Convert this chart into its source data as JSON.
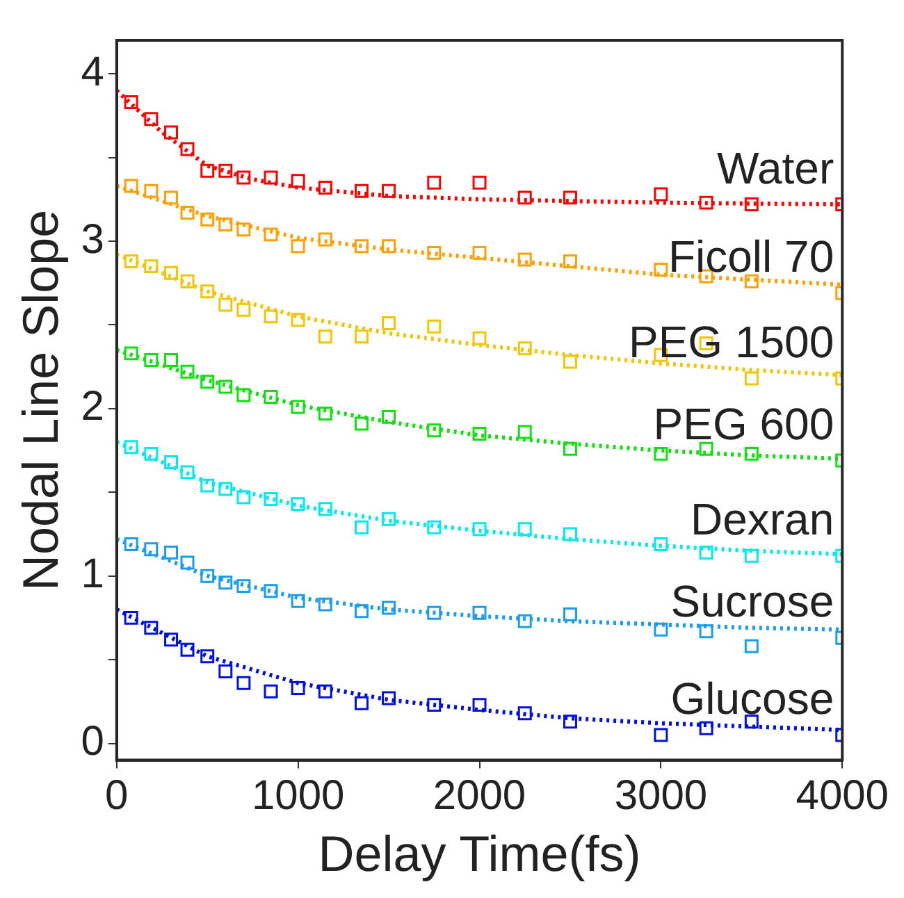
{
  "chart_data": {
    "type": "scatter",
    "xlabel": "Delay Time(fs)",
    "ylabel": "Nodal Line Slope",
    "x": [
      80,
      190,
      300,
      390,
      500,
      600,
      700,
      850,
      1000,
      1150,
      1350,
      1500,
      1750,
      2000,
      2250,
      2500,
      3000,
      3250,
      3500,
      4000
    ],
    "xlim": [
      0,
      4000
    ],
    "xticks": [
      0,
      1000,
      2000,
      3000,
      4000
    ],
    "ylim": [
      -0.1,
      4.2
    ],
    "yticks": [
      0,
      {
        "value": 0.5,
        "label": null
      },
      1,
      {
        "value": 1.5,
        "label": null
      },
      2,
      {
        "value": 2.5,
        "label": null
      },
      3,
      {
        "value": 3.5,
        "label": null
      },
      4
    ],
    "grid": false,
    "legend": false,
    "marker": "square",
    "series": [
      {
        "name": "Water",
        "color": "#ff0000",
        "values": [
          3.83,
          3.73,
          3.65,
          3.55,
          3.42,
          3.42,
          3.38,
          3.38,
          3.36,
          3.32,
          3.3,
          3.3,
          3.35,
          3.35,
          3.26,
          3.26,
          3.28,
          3.23,
          3.22,
          3.22
        ]
      },
      {
        "name": "Ficoll 70",
        "color": "#ffa000",
        "values": [
          3.33,
          3.3,
          3.26,
          3.17,
          3.13,
          3.1,
          3.07,
          3.04,
          2.97,
          3.01,
          2.97,
          2.97,
          2.93,
          2.93,
          2.89,
          2.88,
          2.83,
          2.79,
          2.76,
          2.69
        ]
      },
      {
        "name": "PEG 1500",
        "color": "#f5c400",
        "values": [
          2.88,
          2.85,
          2.81,
          2.76,
          2.7,
          2.62,
          2.59,
          2.55,
          2.53,
          2.43,
          2.43,
          2.51,
          2.49,
          2.42,
          2.36,
          2.28,
          2.32,
          2.39,
          2.18,
          2.18
        ]
      },
      {
        "name": "PEG 600",
        "color": "#10e010",
        "values": [
          2.33,
          2.29,
          2.29,
          2.22,
          2.16,
          2.13,
          2.08,
          2.07,
          2.01,
          1.97,
          1.91,
          1.95,
          1.87,
          1.85,
          1.86,
          1.76,
          1.73,
          1.76,
          1.73,
          1.69
        ]
      },
      {
        "name": "Dexran",
        "color": "#00e8f0",
        "values": [
          1.77,
          1.73,
          1.68,
          1.62,
          1.54,
          1.52,
          1.47,
          1.46,
          1.43,
          1.4,
          1.29,
          1.34,
          1.29,
          1.28,
          1.28,
          1.25,
          1.19,
          1.14,
          1.12,
          1.12
        ]
      },
      {
        "name": "Sucrose",
        "color": "#1a9cf0",
        "values": [
          1.19,
          1.16,
          1.14,
          1.08,
          1.0,
          0.96,
          0.94,
          0.91,
          0.85,
          0.83,
          0.79,
          0.81,
          0.78,
          0.78,
          0.73,
          0.77,
          0.68,
          0.67,
          0.58,
          0.63
        ]
      },
      {
        "name": "Glucose",
        "color": "#0010e0",
        "values": [
          0.75,
          0.69,
          0.62,
          0.56,
          0.52,
          0.43,
          0.36,
          0.31,
          0.33,
          0.31,
          0.24,
          0.27,
          0.23,
          0.23,
          0.18,
          0.13,
          0.05,
          0.09,
          0.13,
          0.05
        ]
      },
      {
        "type": "line",
        "marker": "none",
        "line_style": "dotted",
        "color": "#ff0000",
        "x": [
          0,
          250,
          500,
          750,
          1000,
          1500,
          2000,
          3000,
          4000
        ],
        "values": [
          3.9,
          3.65,
          3.45,
          3.37,
          3.32,
          3.27,
          3.25,
          3.23,
          3.22
        ]
      },
      {
        "type": "line",
        "marker": "none",
        "line_style": "dotted",
        "color": "#ffa000",
        "x": [
          0,
          500,
          1000,
          1500,
          2000,
          2500,
          3000,
          3500,
          4000
        ],
        "values": [
          3.33,
          3.15,
          3.02,
          2.95,
          2.9,
          2.85,
          2.8,
          2.77,
          2.74
        ]
      },
      {
        "type": "line",
        "marker": "none",
        "line_style": "dotted",
        "color": "#f5c400",
        "x": [
          0,
          500,
          1000,
          1500,
          2000,
          2500,
          3000,
          3500,
          4000
        ],
        "values": [
          2.92,
          2.7,
          2.55,
          2.45,
          2.38,
          2.32,
          2.27,
          2.23,
          2.2
        ]
      },
      {
        "type": "line",
        "marker": "none",
        "line_style": "dotted",
        "color": "#10e010",
        "x": [
          0,
          500,
          1000,
          1500,
          2000,
          2500,
          3000,
          3500,
          4000
        ],
        "values": [
          2.35,
          2.17,
          2.02,
          1.92,
          1.84,
          1.79,
          1.75,
          1.72,
          1.7
        ]
      },
      {
        "type": "line",
        "marker": "none",
        "line_style": "dotted",
        "color": "#00e8f0",
        "x": [
          0,
          500,
          1000,
          1500,
          2000,
          2500,
          3000,
          3500,
          4000
        ],
        "values": [
          1.8,
          1.56,
          1.42,
          1.33,
          1.27,
          1.22,
          1.18,
          1.15,
          1.13
        ]
      },
      {
        "type": "line",
        "marker": "none",
        "line_style": "dotted",
        "color": "#1a9cf0",
        "x": [
          0,
          500,
          1000,
          1500,
          2000,
          2500,
          3000,
          3500,
          4000
        ],
        "values": [
          1.22,
          1.0,
          0.87,
          0.8,
          0.76,
          0.73,
          0.71,
          0.69,
          0.68
        ]
      },
      {
        "type": "line",
        "marker": "none",
        "line_style": "dotted",
        "color": "#0010e0",
        "x": [
          0,
          500,
          1000,
          1500,
          2000,
          2500,
          3000,
          3500,
          4000
        ],
        "values": [
          0.8,
          0.52,
          0.36,
          0.26,
          0.2,
          0.15,
          0.12,
          0.1,
          0.08
        ]
      }
    ]
  }
}
